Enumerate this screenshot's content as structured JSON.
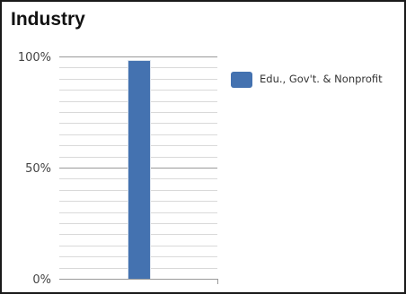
{
  "panel": {
    "title": "Industry"
  },
  "chart_data": {
    "type": "bar",
    "title": "",
    "xlabel": "",
    "ylabel": "",
    "ylim": [
      0,
      100
    ],
    "ytick_labels": [
      "0%",
      "50%",
      "100%"
    ],
    "categories": [
      ""
    ],
    "series": [
      {
        "name": "Edu., Gov't. & Nonprofit",
        "values": [
          98
        ],
        "color": "#4472b0"
      }
    ],
    "grid": true,
    "legend_position": "right"
  }
}
